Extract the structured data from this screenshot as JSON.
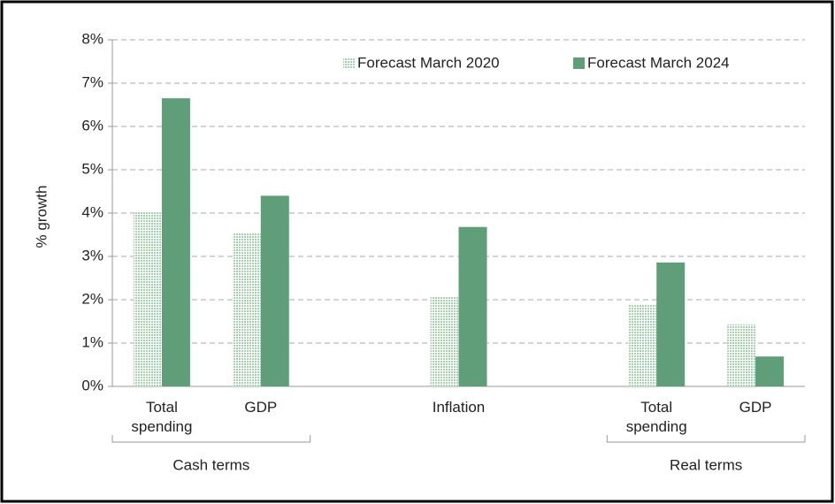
{
  "chart_data": {
    "type": "bar",
    "y_label": "% growth",
    "categories": [
      "Total spending",
      "GDP",
      null,
      "Inflation",
      null,
      "Total spending",
      "GDP"
    ],
    "category_groups": [
      "Cash terms",
      "Cash terms",
      null,
      null,
      null,
      "Real terms",
      "Real terms"
    ],
    "series": [
      {
        "name": "Forecast March 2020",
        "color": "#a9d2b3",
        "pattern": "dots",
        "values": [
          4.02,
          3.55,
          null,
          2.07,
          null,
          1.9,
          1.43
        ]
      },
      {
        "name": "Forecast March 2024",
        "color": "#5f9e79",
        "values": [
          6.65,
          4.4,
          null,
          3.68,
          null,
          2.86,
          0.69
        ]
      }
    ],
    "ylim": [
      0,
      8
    ],
    "yticks": [
      {
        "value": 0,
        "label": "0%"
      },
      {
        "value": 1,
        "label": "1%"
      },
      {
        "value": 2,
        "label": "2%"
      },
      {
        "value": 3,
        "label": "3%"
      },
      {
        "value": 4,
        "label": "4%"
      },
      {
        "value": 5,
        "label": "5%"
      },
      {
        "value": 6,
        "label": "6%"
      },
      {
        "value": 7,
        "label": "7%"
      },
      {
        "value": 8,
        "label": "8%"
      }
    ],
    "grid": true,
    "legend": "top-right"
  }
}
